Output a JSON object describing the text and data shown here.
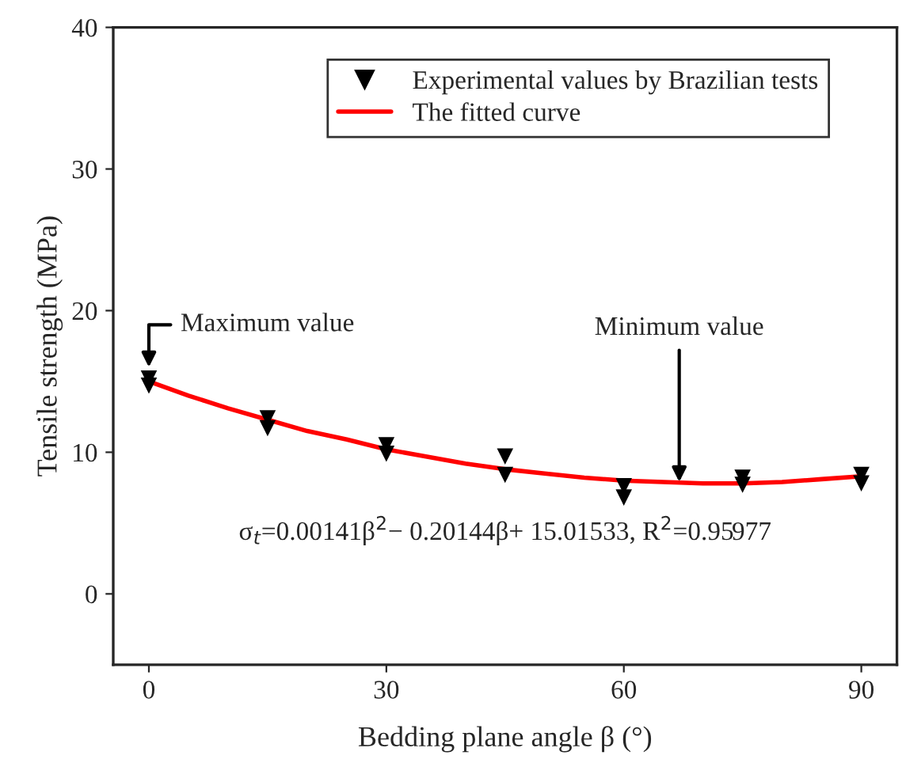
{
  "chart_data": {
    "type": "scatter",
    "xlabel": "Bedding plane angle β (°)",
    "ylabel": "Tensile strength (MPa)",
    "xlim": [
      -4.5,
      94.5
    ],
    "ylim": [
      -5,
      40
    ],
    "xticks": [
      0,
      30,
      60,
      90
    ],
    "yticks": [
      0,
      10,
      20,
      30,
      40
    ],
    "grid": false,
    "legend": "top right",
    "series": [
      {
        "name": "Experimental values by Brazilian tests",
        "type": "scatter",
        "color": "#000000",
        "marker": "triangle",
        "x": [
          0,
          0,
          15,
          15,
          30,
          30,
          45,
          45,
          60,
          60,
          75,
          75,
          90,
          90
        ],
        "values": [
          15.2,
          14.7,
          12.4,
          11.7,
          10.5,
          9.9,
          9.7,
          8.4,
          7.6,
          6.8,
          8.2,
          7.7,
          8.4,
          7.8
        ]
      },
      {
        "name": "The fitted curve",
        "type": "line",
        "color": "#ff0000",
        "line_style": "solid",
        "x": [
          0,
          5,
          10,
          15,
          20,
          25,
          30,
          35,
          40,
          45,
          50,
          55,
          60,
          65,
          70,
          75,
          80,
          85,
          90
        ],
        "values": [
          15.0,
          14.0,
          13.1,
          12.3,
          11.5,
          10.9,
          10.2,
          9.7,
          9.2,
          8.8,
          8.5,
          8.2,
          8.0,
          7.9,
          7.8,
          7.8,
          7.9,
          8.1,
          8.3
        ]
      }
    ],
    "annotations": [
      {
        "text": "Maximum value",
        "x": 0,
        "y": 16
      },
      {
        "text": "Minimum value",
        "x": 67,
        "y": 7.9
      },
      "σ$_{t}$=0.00141β$^{2}$− 0.20144β+ 15.01533, R$^{2}$=0.95977"
    ]
  }
}
